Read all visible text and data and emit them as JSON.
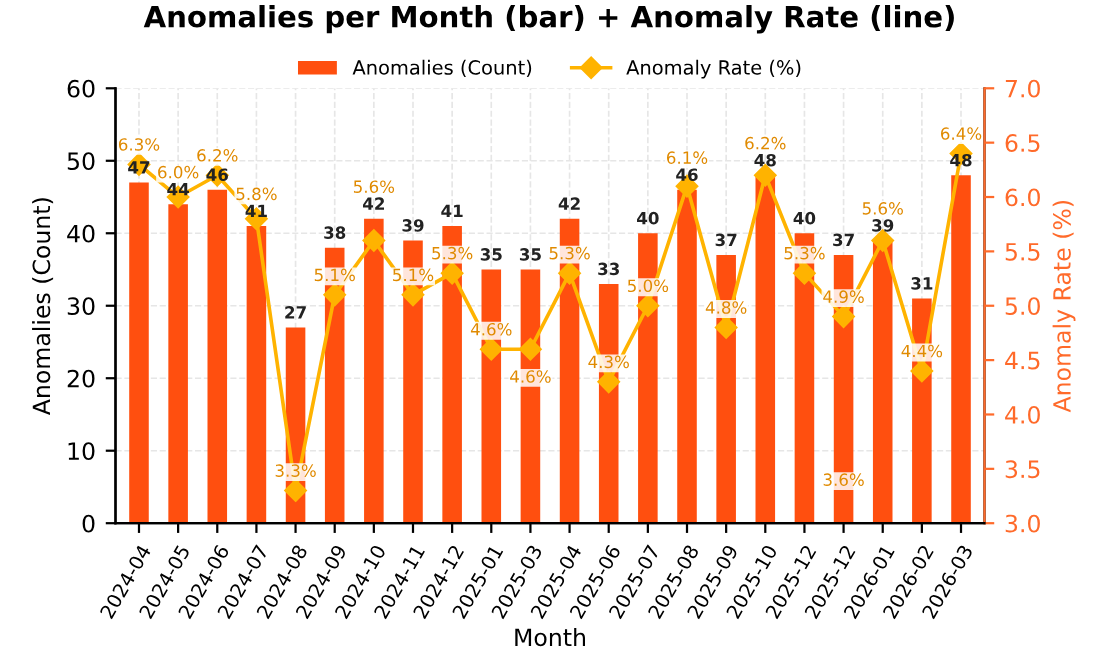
{
  "chart_data": {
    "type": "bar",
    "title": "Anomalies per Month (bar) + Anomaly Rate (line)",
    "xlabel": "Month",
    "ylabel": "Anomalies (Count)",
    "y2label": "Anomaly Rate (%)",
    "categories": [
      "2024-04",
      "2024-05",
      "2024-06",
      "2024-07",
      "2024-08",
      "2024-09",
      "2024-10",
      "2024-11",
      "2024-12",
      "2025-01",
      "2025-03",
      "2025-04",
      "2025-06",
      "2025-07",
      "2025-08",
      "2025-09",
      "2025-10",
      "2025-12",
      "2025-12",
      "2026-01",
      "2026-02",
      "2026-03"
    ],
    "series": [
      {
        "name": "Anomalies (Count)",
        "color": "#ff4f0f",
        "values": [
          47,
          44,
          46,
          41,
          27,
          38,
          42,
          39,
          41,
          35,
          35,
          42,
          33,
          40,
          46,
          37,
          48,
          40,
          37,
          39,
          31,
          48
        ],
        "data_labels": true
      },
      {
        "name": "Anomaly Rate (%)",
        "type": "line",
        "axis": "y2",
        "color": "#ffb300",
        "marker": "diamond",
        "values": [
          6.3,
          6.0,
          6.2,
          5.8,
          3.3,
          5.1,
          5.6,
          5.1,
          5.3,
          4.6,
          4.6,
          5.3,
          4.3,
          5.0,
          6.1,
          4.8,
          6.2,
          5.3,
          4.9,
          5.6,
          4.4,
          6.4
        ],
        "value_labels": [
          "6.3%",
          "6.0%",
          "6.2%",
          "5.8%",
          "3.3%",
          "5.1%",
          "5.6%",
          "5.1%",
          "5.3%",
          "4.6%",
          "4.6%",
          "5.3%",
          "4.3%",
          "5.0%",
          "6.1%",
          "4.8%",
          "6.2%",
          "5.3%",
          "4.9%",
          "5.6%",
          "4.4%",
          "6.4%"
        ]
      }
    ],
    "annotations": [
      {
        "text": "3.6%",
        "x": "2025-12",
        "y": 3.6
      }
    ],
    "ylim": [
      0,
      60
    ],
    "yticks": [
      0,
      10,
      20,
      30,
      40,
      50,
      60
    ],
    "y2lim": [
      3.0,
      7.0
    ],
    "y2ticks": [
      {
        "value": 3.0,
        "label": "3.0"
      },
      {
        "value": 3.5,
        "label": "3.5"
      },
      {
        "value": 4.0,
        "label": "4.0"
      },
      {
        "value": 4.5,
        "label": "4.5"
      },
      {
        "value": 5.0,
        "label": "5.0"
      },
      {
        "value": 5.5,
        "label": "5.5"
      },
      {
        "value": 6.0,
        "label": "6.0"
      },
      {
        "value": 6.5,
        "label": "6.5"
      },
      {
        "value": 7.0,
        "label": "7.0"
      }
    ],
    "grid": true,
    "legend": "top"
  }
}
